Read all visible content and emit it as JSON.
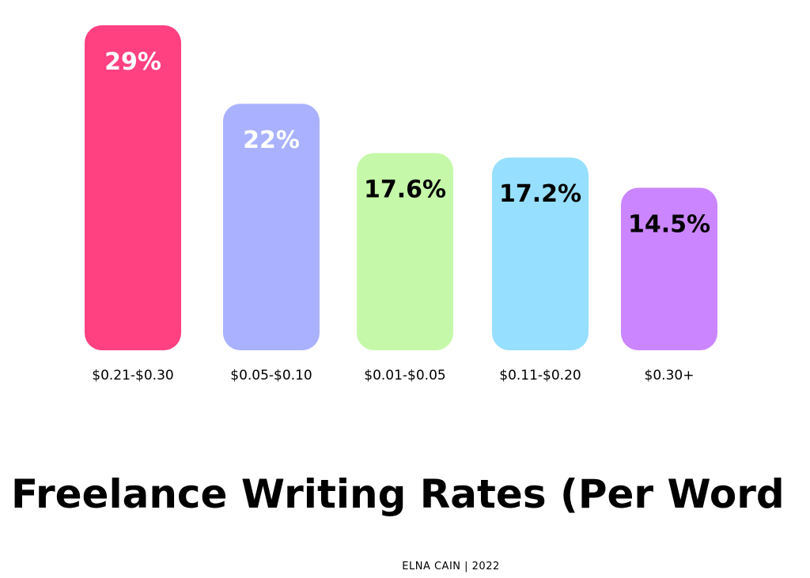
{
  "chart_data": {
    "type": "bar",
    "title": "Freelance Writing Rates (Per Word",
    "categories": [
      "$0.21-$0.30",
      "$0.05-$0.10",
      "$0.01-$0.05",
      "$0.11-$0.20",
      "$0.30+"
    ],
    "values": [
      29,
      22,
      17.6,
      17.2,
      14.5
    ],
    "data_labels": [
      "29%",
      "22%",
      "17.6%",
      "17.2%",
      "14.5%"
    ],
    "colors": [
      "#FF4081",
      "#AAB2FF",
      "#C5F9A9",
      "#97DFFF",
      "#CB86FF"
    ],
    "label_colors": [
      "#FFFFFF",
      "#FFFFFF",
      "#000000",
      "#000000",
      "#000000"
    ],
    "xlabel": "",
    "ylabel": "",
    "ylim": [
      0,
      29
    ],
    "grid": false
  },
  "footer": {
    "credit": "ELNA CAIN | 2022"
  }
}
